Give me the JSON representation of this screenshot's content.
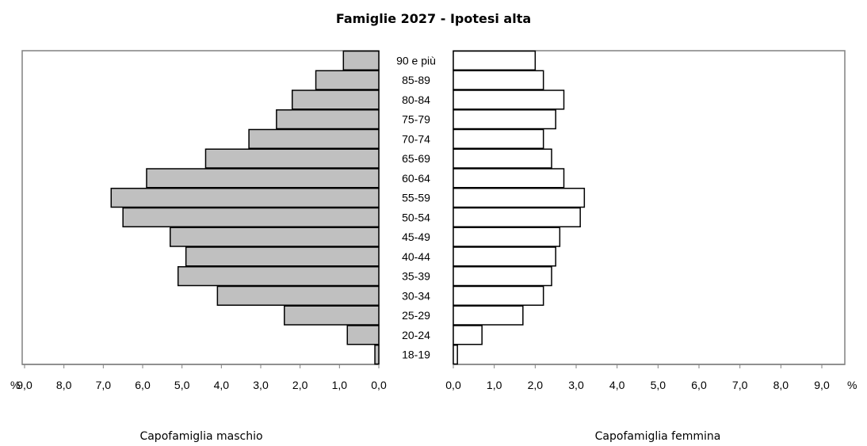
{
  "chart_data": {
    "type": "bar",
    "title": "Famiglie 2027 - Ipotesi alta",
    "categories": [
      "90 e più",
      "85-89",
      "80-84",
      "75-79",
      "70-74",
      "65-69",
      "60-64",
      "55-59",
      "50-54",
      "45-49",
      "40-44",
      "35-39",
      "30-34",
      "25-29",
      "20-24",
      "18-19"
    ],
    "series": [
      {
        "name": "Capofamiglia maschio",
        "color": "#c0c0c0",
        "values": [
          0.9,
          1.6,
          2.2,
          2.6,
          3.3,
          4.4,
          5.9,
          6.8,
          6.5,
          5.3,
          4.9,
          5.1,
          4.1,
          2.4,
          0.8,
          0.1
        ]
      },
      {
        "name": "Capofamiglia femmina",
        "color": "#ffffff",
        "values": [
          2.0,
          2.2,
          2.7,
          2.5,
          2.2,
          2.4,
          2.7,
          3.2,
          3.1,
          2.6,
          2.5,
          2.4,
          2.2,
          1.7,
          0.7,
          0.1
        ]
      }
    ],
    "xlim": [
      0,
      9
    ],
    "left_ticks": [
      "9,0",
      "8,0",
      "7,0",
      "6,0",
      "5,0",
      "4,0",
      "3,0",
      "2,0",
      "1,0",
      "0,0"
    ],
    "right_ticks": [
      "0,0",
      "1,0",
      "2,0",
      "3,0",
      "4,0",
      "5,0",
      "6,0",
      "7,0",
      "8,0",
      "9,0"
    ],
    "unit_label": "%",
    "xlabel_left": "Capofamiglia maschio",
    "xlabel_right": "Capofamiglia femmina"
  }
}
